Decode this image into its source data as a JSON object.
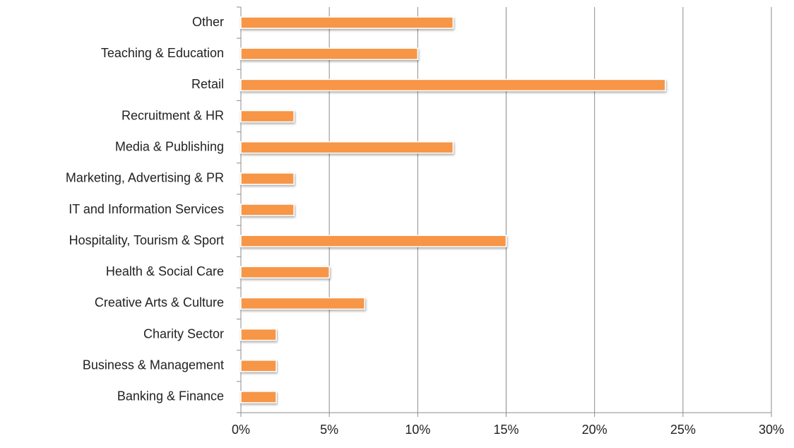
{
  "chart_data": {
    "type": "bar",
    "orientation": "horizontal",
    "categories": [
      "Other",
      "Teaching & Education",
      "Retail",
      "Recruitment & HR",
      "Media & Publishing",
      "Marketing, Advertising & PR",
      "IT and Information Services",
      "Hospitality, Tourism & Sport",
      "Health & Social Care",
      "Creative Arts & Culture",
      "Charity Sector",
      "Business & Management",
      "Banking & Finance"
    ],
    "values": [
      12,
      10,
      24,
      3,
      12,
      3,
      3,
      15,
      5,
      7,
      2,
      2,
      2
    ],
    "color": "#f79646",
    "xlim": [
      0,
      30
    ],
    "xticks": [
      {
        "value": 0,
        "label": "0%"
      },
      {
        "value": 5,
        "label": "5%"
      },
      {
        "value": 10,
        "label": "10%"
      },
      {
        "value": 15,
        "label": "15%"
      },
      {
        "value": 20,
        "label": "20%"
      },
      {
        "value": 25,
        "label": "25%"
      },
      {
        "value": 30,
        "label": "30%"
      }
    ],
    "grid": true
  }
}
